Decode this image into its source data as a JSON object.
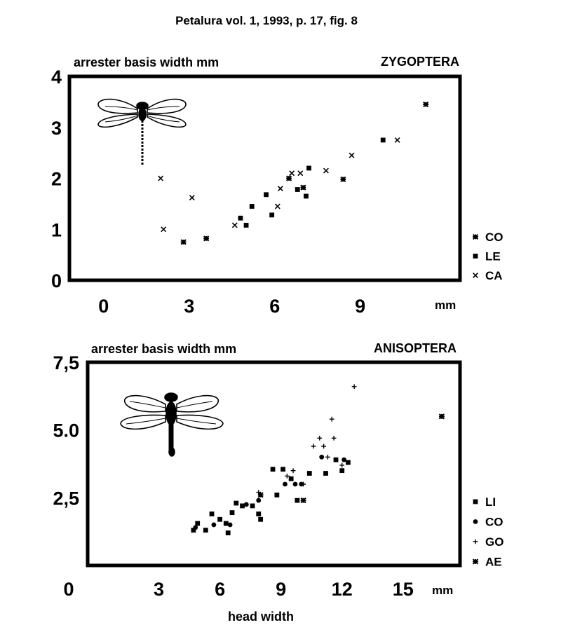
{
  "figure": {
    "caption": "Petalura vol. 1, 1993, p. 17, fig. 8",
    "xlabel": "head width"
  },
  "chart_data": [
    {
      "type": "scatter",
      "title": "ZYGOPTERA",
      "ylabel": "arrester  basis  width  mm",
      "x_unit": "mm",
      "xlim": [
        -1.2,
        12.5
      ],
      "ylim": [
        0,
        4
      ],
      "x_ticks": [
        0,
        3,
        6,
        9
      ],
      "x_tick_labels": [
        "0",
        "3",
        "6",
        "9"
      ],
      "y_ticks": [
        0,
        1,
        2,
        3,
        4
      ],
      "y_tick_labels": [
        "0",
        "1",
        "2",
        "3",
        "4"
      ],
      "grid": false,
      "legend_position": "right",
      "series": [
        {
          "name": "CO",
          "marker": "star",
          "points": [
            [
              2.8,
              0.75
            ],
            [
              3.6,
              0.82
            ],
            [
              6.5,
              2.0
            ],
            [
              7.0,
              1.82
            ],
            [
              8.4,
              1.98
            ],
            [
              11.3,
              3.45
            ]
          ]
        },
        {
          "name": "LE",
          "marker": "square",
          "points": [
            [
              4.8,
              1.22
            ],
            [
              5.2,
              1.45
            ],
            [
              5.7,
              1.68
            ],
            [
              5.9,
              1.28
            ],
            [
              6.8,
              1.78
            ],
            [
              7.1,
              1.65
            ],
            [
              7.2,
              2.2
            ],
            [
              9.8,
              2.75
            ],
            [
              5.0,
              1.08
            ]
          ]
        },
        {
          "name": "CA",
          "marker": "cross",
          "points": [
            [
              2.1,
              1.0
            ],
            [
              3.1,
              1.62
            ],
            [
              4.6,
              1.08
            ],
            [
              6.1,
              1.45
            ],
            [
              6.2,
              1.8
            ],
            [
              6.6,
              2.1
            ],
            [
              6.9,
              2.1
            ],
            [
              7.8,
              2.15
            ],
            [
              8.7,
              2.45
            ],
            [
              10.3,
              2.75
            ],
            [
              2.0,
              2.0
            ]
          ]
        }
      ]
    },
    {
      "type": "scatter",
      "title": "ANISOPTERA",
      "ylabel": "arrester  basis  width  mm",
      "x_unit": "mm",
      "xlim": [
        -0.5,
        17.8
      ],
      "ylim": [
        0,
        7.5
      ],
      "x_ticks": [
        0,
        3,
        6,
        9,
        12,
        15
      ],
      "x_tick_labels": [
        "0",
        "3",
        "6",
        "9",
        "12",
        "15"
      ],
      "y_ticks": [
        2.5,
        5,
        7.5
      ],
      "y_tick_labels": [
        "2,5",
        "5.0",
        "7,5"
      ],
      "grid": false,
      "legend_position": "right",
      "series": [
        {
          "name": "LI",
          "marker": "square",
          "points": [
            [
              4.7,
              1.3
            ],
            [
              4.9,
              1.55
            ],
            [
              5.3,
              1.3
            ],
            [
              5.6,
              1.9
            ],
            [
              6.0,
              1.7
            ],
            [
              6.3,
              1.55
            ],
            [
              6.4,
              1.2
            ],
            [
              6.6,
              1.95
            ],
            [
              6.8,
              2.3
            ],
            [
              7.1,
              2.2
            ],
            [
              7.6,
              2.2
            ],
            [
              7.9,
              1.9
            ],
            [
              8.0,
              1.7
            ],
            [
              8.6,
              3.55
            ],
            [
              8.8,
              2.6
            ],
            [
              9.1,
              3.55
            ],
            [
              9.5,
              3.2
            ],
            [
              9.8,
              2.4
            ],
            [
              10.4,
              3.4
            ],
            [
              11.2,
              3.4
            ],
            [
              11.7,
              3.9
            ],
            [
              12.0,
              3.5
            ],
            [
              12.3,
              3.8
            ]
          ]
        },
        {
          "name": "CO",
          "marker": "circle",
          "points": [
            [
              4.8,
              1.4
            ],
            [
              5.7,
              1.5
            ],
            [
              6.5,
              1.5
            ],
            [
              7.3,
              2.25
            ],
            [
              7.9,
              2.4
            ],
            [
              9.2,
              3.0
            ],
            [
              9.7,
              3.0
            ],
            [
              10.0,
              3.0
            ],
            [
              11.0,
              4.0
            ],
            [
              12.1,
              3.9
            ]
          ]
        },
        {
          "name": "GO",
          "marker": "plus",
          "points": [
            [
              7.9,
              2.7
            ],
            [
              9.3,
              3.3
            ],
            [
              9.6,
              3.5
            ],
            [
              10.6,
              4.4
            ],
            [
              10.9,
              4.7
            ],
            [
              11.1,
              4.4
            ],
            [
              11.3,
              4.0
            ],
            [
              11.6,
              4.7
            ],
            [
              12.0,
              3.7
            ],
            [
              11.5,
              5.4
            ],
            [
              12.6,
              6.6
            ],
            [
              10.1,
              3.0
            ]
          ]
        },
        {
          "name": "AE",
          "marker": "star",
          "points": [
            [
              16.9,
              5.5
            ],
            [
              10.1,
              2.4
            ],
            [
              8.0,
              2.6
            ]
          ]
        }
      ]
    }
  ]
}
